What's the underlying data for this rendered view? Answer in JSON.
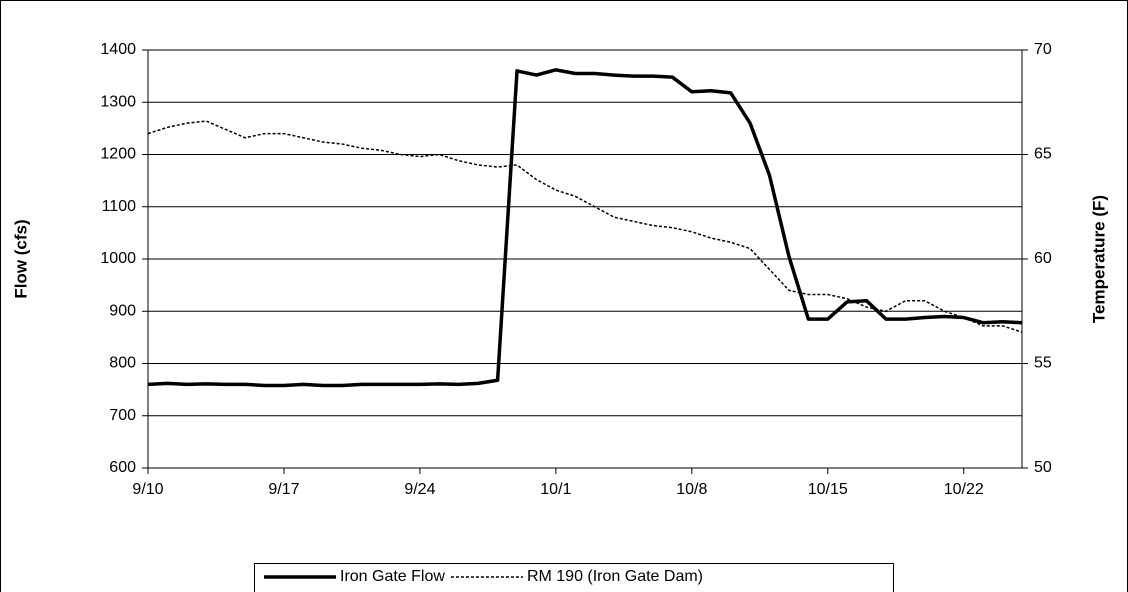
{
  "chart_data": {
    "type": "line",
    "y_label": "Flow (cfs)",
    "y2_label": "Temperature (F)",
    "categories": [
      "9/10",
      null,
      null,
      null,
      null,
      null,
      null,
      "9/17",
      null,
      null,
      null,
      null,
      null,
      null,
      "9/24",
      null,
      null,
      null,
      null,
      null,
      null,
      "10/1",
      null,
      null,
      null,
      null,
      null,
      null,
      "10/8",
      null,
      null,
      null,
      null,
      null,
      null,
      "10/15",
      null,
      null,
      null,
      null,
      null,
      null,
      "10/22",
      null,
      null,
      null
    ],
    "series": [
      {
        "name": "Iron Gate Flow",
        "color": "#000000",
        "line_style": "solid",
        "axis": "y",
        "values": [
          760,
          762,
          760,
          761,
          760,
          760,
          758,
          758,
          760,
          758,
          758,
          760,
          760,
          760,
          760,
          761,
          760,
          762,
          768,
          1360,
          1352,
          1362,
          1355,
          1355,
          1352,
          1350,
          1350,
          1348,
          1320,
          1322,
          1318,
          1260,
          1160,
          1005,
          885,
          885,
          918,
          920,
          885,
          885,
          888,
          890,
          888,
          878,
          880,
          878
        ]
      },
      {
        "name": "RM 190 (Iron Gate Dam)",
        "color": "#000000",
        "line_style": "dotted",
        "axis": "y2",
        "values": [
          66,
          66.3,
          66.5,
          66.6,
          66.2,
          65.8,
          66,
          66,
          65.8,
          65.6,
          65.5,
          65.3,
          65.2,
          65,
          64.9,
          65,
          64.7,
          64.5,
          64.4,
          64.5,
          63.8,
          63.3,
          63,
          62.5,
          62,
          61.8,
          61.6,
          61.5,
          61.3,
          61,
          60.8,
          60.5,
          59.5,
          58.5,
          58.3,
          58.3,
          58.1,
          57.7,
          57.5,
          58,
          58,
          57.5,
          57.2,
          56.8,
          56.8,
          56.5
        ]
      }
    ],
    "ylim": [
      600,
      1400
    ],
    "yticks": [
      600,
      700,
      800,
      900,
      1000,
      1100,
      1200,
      1300,
      1400
    ],
    "y2lim": [
      50,
      70
    ],
    "y2ticks": [
      50,
      55,
      60,
      65,
      70
    ],
    "grid": true,
    "legend": "bottom"
  }
}
